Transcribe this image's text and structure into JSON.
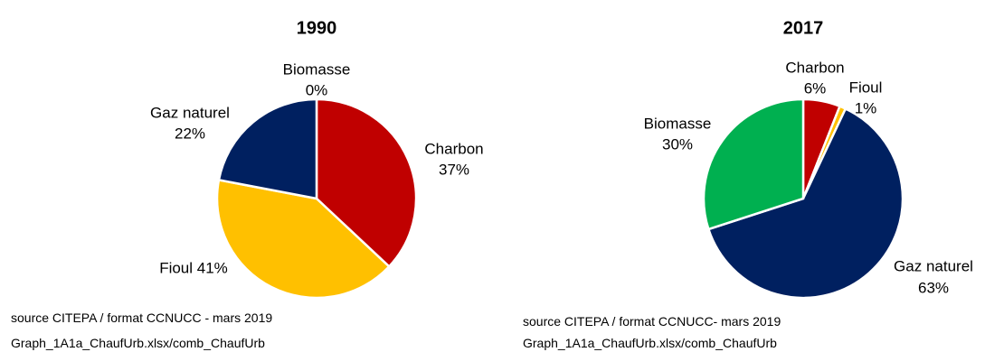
{
  "chart_data": [
    {
      "type": "pie",
      "title": "1990",
      "slices": [
        {
          "label": "Biomasse",
          "pct_label": "0%",
          "value": 0,
          "color": "#00b050"
        },
        {
          "label": "Charbon",
          "pct_label": "37%",
          "value": 37,
          "color": "#c00000"
        },
        {
          "label": "Fioul",
          "pct_label": "41%",
          "value": 41,
          "color": "#ffc000"
        },
        {
          "label": "Gaz naturel",
          "pct_label": "22%",
          "value": 22,
          "color": "#002060"
        }
      ],
      "source": "source CITEPA / format CCNUCC - mars 2019",
      "file": "Graph_1A1a_ChaufUrb.xlsx/comb_ChaufUrb"
    },
    {
      "type": "pie",
      "title": "2017",
      "slices": [
        {
          "label": "Charbon",
          "pct_label": "6%",
          "value": 6,
          "color": "#c00000"
        },
        {
          "label": "Fioul",
          "pct_label": "1%",
          "value": 1,
          "color": "#ffc000"
        },
        {
          "label": "Gaz naturel",
          "pct_label": "63%",
          "value": 63,
          "color": "#002060"
        },
        {
          "label": "Biomasse",
          "pct_label": "30%",
          "value": 30,
          "color": "#00b050"
        }
      ],
      "source": "source CITEPA / format CCNUCC- mars 2019",
      "file": "Graph_1A1a_ChaufUrb.xlsx/comb_ChaufUrb"
    }
  ]
}
